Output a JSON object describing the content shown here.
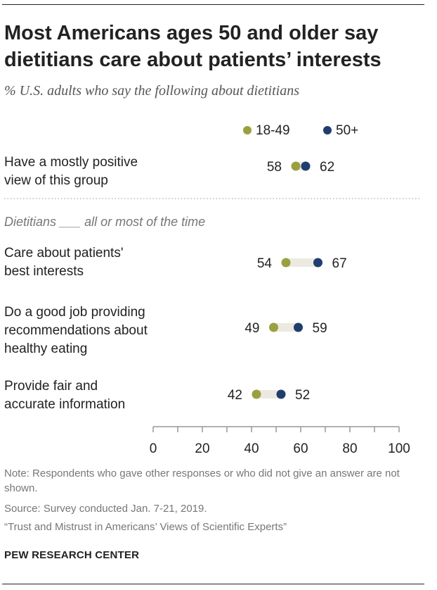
{
  "title": "Most Americans ages 50 and older say dietitians care about patients’ interests",
  "subtitle": "% U.S. adults who say the following about dietitians",
  "section_label": "Dietitians ___ all or most of the time",
  "notes": {
    "note": "Note: Respondents who gave other responses or who did not give an answer are not shown.",
    "source": "Source: Survey conducted Jan. 7-21, 2019.",
    "report": "“Trust and Mistrust in Americans’ Views of Scientific Experts”",
    "org": "PEW RESEARCH CENTER"
  },
  "colors": {
    "young": "#9aa040",
    "old": "#1f3e6e",
    "bar": "#ece9e0",
    "axis": "#999999",
    "text": "#222222",
    "muted": "#777777"
  },
  "chart_data": {
    "type": "dot",
    "series": [
      {
        "name": "18-49",
        "values": [
          58,
          54,
          49,
          42
        ]
      },
      {
        "name": "50+",
        "values": [
          62,
          67,
          59,
          52
        ]
      }
    ],
    "categories": [
      [
        "Have a mostly positive",
        "view of this group"
      ],
      [
        "Care about patients'",
        "best interests"
      ],
      [
        "Do a good job providing",
        "recommendations about",
        "healthy eating"
      ],
      [
        "Provide fair and",
        "accurate information"
      ]
    ],
    "xlim": [
      0,
      100
    ],
    "xticks": [
      0,
      20,
      40,
      60,
      80,
      100
    ],
    "minor_ticks": [
      10,
      30,
      50,
      70,
      90
    ],
    "legend": "top"
  }
}
